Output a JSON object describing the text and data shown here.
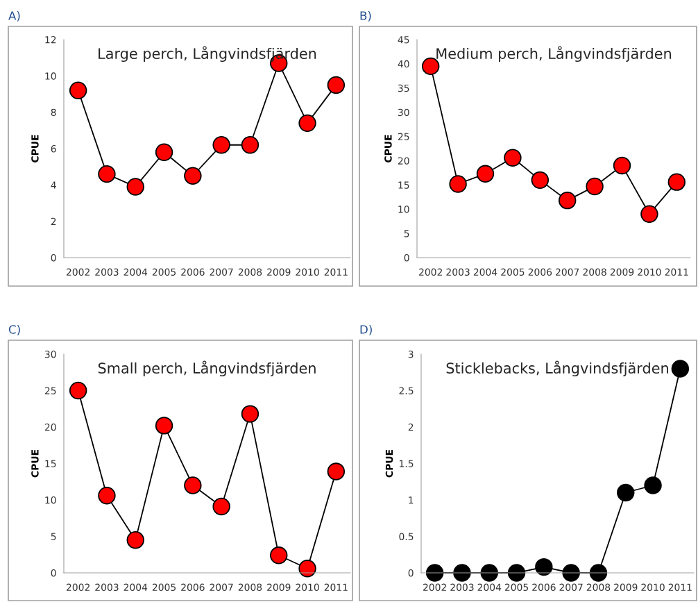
{
  "chart_data": [
    {
      "type": "line",
      "title": "Large perch, Långvindsfjärden",
      "ylabel": "CPUE",
      "annotations": [
        "A)"
      ],
      "categories": [
        "2002",
        "2003",
        "2004",
        "2005",
        "2006",
        "2007",
        "2008",
        "2009",
        "2010",
        "2011"
      ],
      "series": [
        {
          "color": "#ff0000",
          "values": [
            9.2,
            4.6,
            3.9,
            5.8,
            4.5,
            6.2,
            6.2,
            10.7,
            7.4,
            9.5
          ]
        }
      ],
      "ylim": [
        0,
        12
      ],
      "yticks": [
        0,
        2,
        4,
        6,
        8,
        10,
        12
      ],
      "marker": "circle",
      "grid": false,
      "legend": false
    },
    {
      "type": "line",
      "title": "Medium perch, Långvindsfjärden",
      "ylabel": "CPUE",
      "annotations": [
        "B)"
      ],
      "categories": [
        "2002",
        "2003",
        "2004",
        "2005",
        "2006",
        "2007",
        "2008",
        "2009",
        "2010",
        "2011"
      ],
      "series": [
        {
          "color": "#ff0000",
          "values": [
            39.5,
            15.2,
            17.3,
            20.6,
            16.0,
            11.8,
            14.7,
            19.0,
            9.0,
            15.6
          ]
        }
      ],
      "ylim": [
        0,
        45
      ],
      "yticks": [
        0,
        5,
        10,
        15,
        20,
        25,
        30,
        35,
        40,
        45
      ],
      "marker": "circle",
      "grid": false,
      "legend": false
    },
    {
      "type": "line",
      "title": "Small perch, Långvindsfjärden",
      "ylabel": "CPUE",
      "annotations": [
        "C)"
      ],
      "categories": [
        "2002",
        "2003",
        "2004",
        "2005",
        "2006",
        "2007",
        "2008",
        "2009",
        "2010",
        "2011"
      ],
      "series": [
        {
          "color": "#ff0000",
          "values": [
            25.0,
            10.6,
            4.5,
            20.2,
            12.0,
            9.1,
            21.8,
            2.4,
            0.6,
            13.9
          ]
        }
      ],
      "ylim": [
        0,
        30
      ],
      "yticks": [
        0,
        5,
        10,
        15,
        20,
        25,
        30
      ],
      "marker": "circle",
      "grid": false,
      "legend": false
    },
    {
      "type": "line",
      "title": "Sticklebacks, Långvindsfjärden",
      "ylabel": "CPUE",
      "annotations": [
        "D)"
      ],
      "categories": [
        "2002",
        "2003",
        "2004",
        "2005",
        "2006",
        "2007",
        "2008",
        "2009",
        "2010",
        "2011"
      ],
      "series": [
        {
          "color": "#000000",
          "values": [
            0,
            0,
            0,
            0,
            0.08,
            0,
            0,
            1.1,
            1.2,
            2.8
          ]
        }
      ],
      "ylim": [
        0,
        3
      ],
      "yticks": [
        0,
        0.5,
        1,
        1.5,
        2,
        2.5,
        3
      ],
      "marker": "circle",
      "grid": false,
      "legend": false
    }
  ]
}
